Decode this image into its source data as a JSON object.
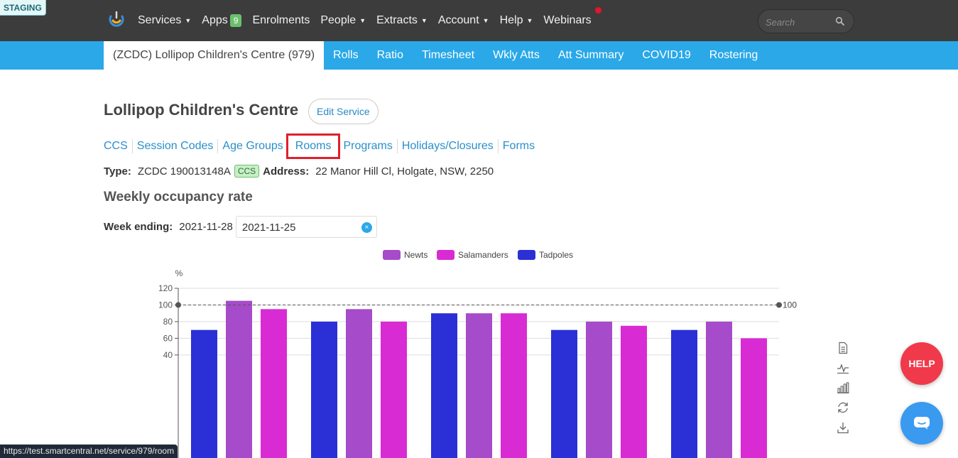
{
  "env_badge": "STAGING",
  "topnav": {
    "items": [
      {
        "label": "Services",
        "caret": true
      },
      {
        "label": "Apps",
        "badge": "9"
      },
      {
        "label": "Enrolments"
      },
      {
        "label": "People",
        "caret": true
      },
      {
        "label": "Extracts",
        "caret": true
      },
      {
        "label": "Account",
        "caret": true
      },
      {
        "label": "Help",
        "caret": true
      },
      {
        "label": "Webinars"
      }
    ],
    "search_placeholder": "Search"
  },
  "subnav": {
    "active": "(ZCDC) Lollipop Children's Centre (979)",
    "items": [
      "Rolls",
      "Ratio",
      "Timesheet",
      "Wkly Atts",
      "Att Summary",
      "COVID19",
      "Rostering"
    ]
  },
  "service": {
    "title": "Lollipop Children's Centre",
    "edit_label": "Edit Service",
    "tabs": [
      "CCS",
      "Session Codes",
      "Age Groups",
      "Rooms",
      "Programs",
      "Holidays/Closures",
      "Forms"
    ],
    "highlighted_tab": "Rooms",
    "type_label": "Type:",
    "type_value": "ZCDC 190013148A",
    "ccs_badge": "CCS",
    "address_label": "Address:",
    "address_value": "22 Manor Hill Cl, Holgate, NSW, 2250"
  },
  "occupancy": {
    "section_title": "Weekly occupancy rate",
    "week_label": "Week ending:",
    "week_text": "2021-11-28",
    "week_input_value": "2021-11-25",
    "clear_icon": "×"
  },
  "chart_data": {
    "type": "bar",
    "ylabel": "%",
    "ylim": [
      0,
      120
    ],
    "yticks": [
      40,
      60,
      80,
      100,
      120
    ],
    "grid": true,
    "legend_position": "top-center",
    "markline": {
      "value": 100,
      "label": "100"
    },
    "series": [
      {
        "name": "Newts",
        "color": "#a64bc9"
      },
      {
        "name": "Salamanders",
        "color": "#d92bd3"
      },
      {
        "name": "Tadpoles",
        "color": "#2a30d6"
      }
    ],
    "groups": [
      {
        "bars": [
          {
            "series": "Tadpoles",
            "value": 70
          },
          {
            "series": "Newts",
            "value": 105
          },
          {
            "series": "Salamanders",
            "value": 95
          }
        ]
      },
      {
        "bars": [
          {
            "series": "Tadpoles",
            "value": 80
          },
          {
            "series": "Newts",
            "value": 95
          },
          {
            "series": "Salamanders",
            "value": 80
          }
        ]
      },
      {
        "bars": [
          {
            "series": "Tadpoles",
            "value": 90
          },
          {
            "series": "Newts",
            "value": 90
          },
          {
            "series": "Salamanders",
            "value": 90
          }
        ]
      },
      {
        "bars": [
          {
            "series": "Tadpoles",
            "value": 70
          },
          {
            "series": "Newts",
            "value": 80
          },
          {
            "series": "Salamanders",
            "value": 75
          }
        ]
      },
      {
        "bars": [
          {
            "series": "Tadpoles",
            "value": 70
          },
          {
            "series": "Newts",
            "value": 80
          },
          {
            "series": "Salamanders",
            "value": 60
          }
        ]
      }
    ]
  },
  "toolbox": [
    "data-view-icon",
    "line-chart-icon",
    "bar-chart-icon",
    "restore-icon",
    "save-image-icon"
  ],
  "help_label": "HELP",
  "status_url": "https://test.smartcentral.net/service/979/room"
}
